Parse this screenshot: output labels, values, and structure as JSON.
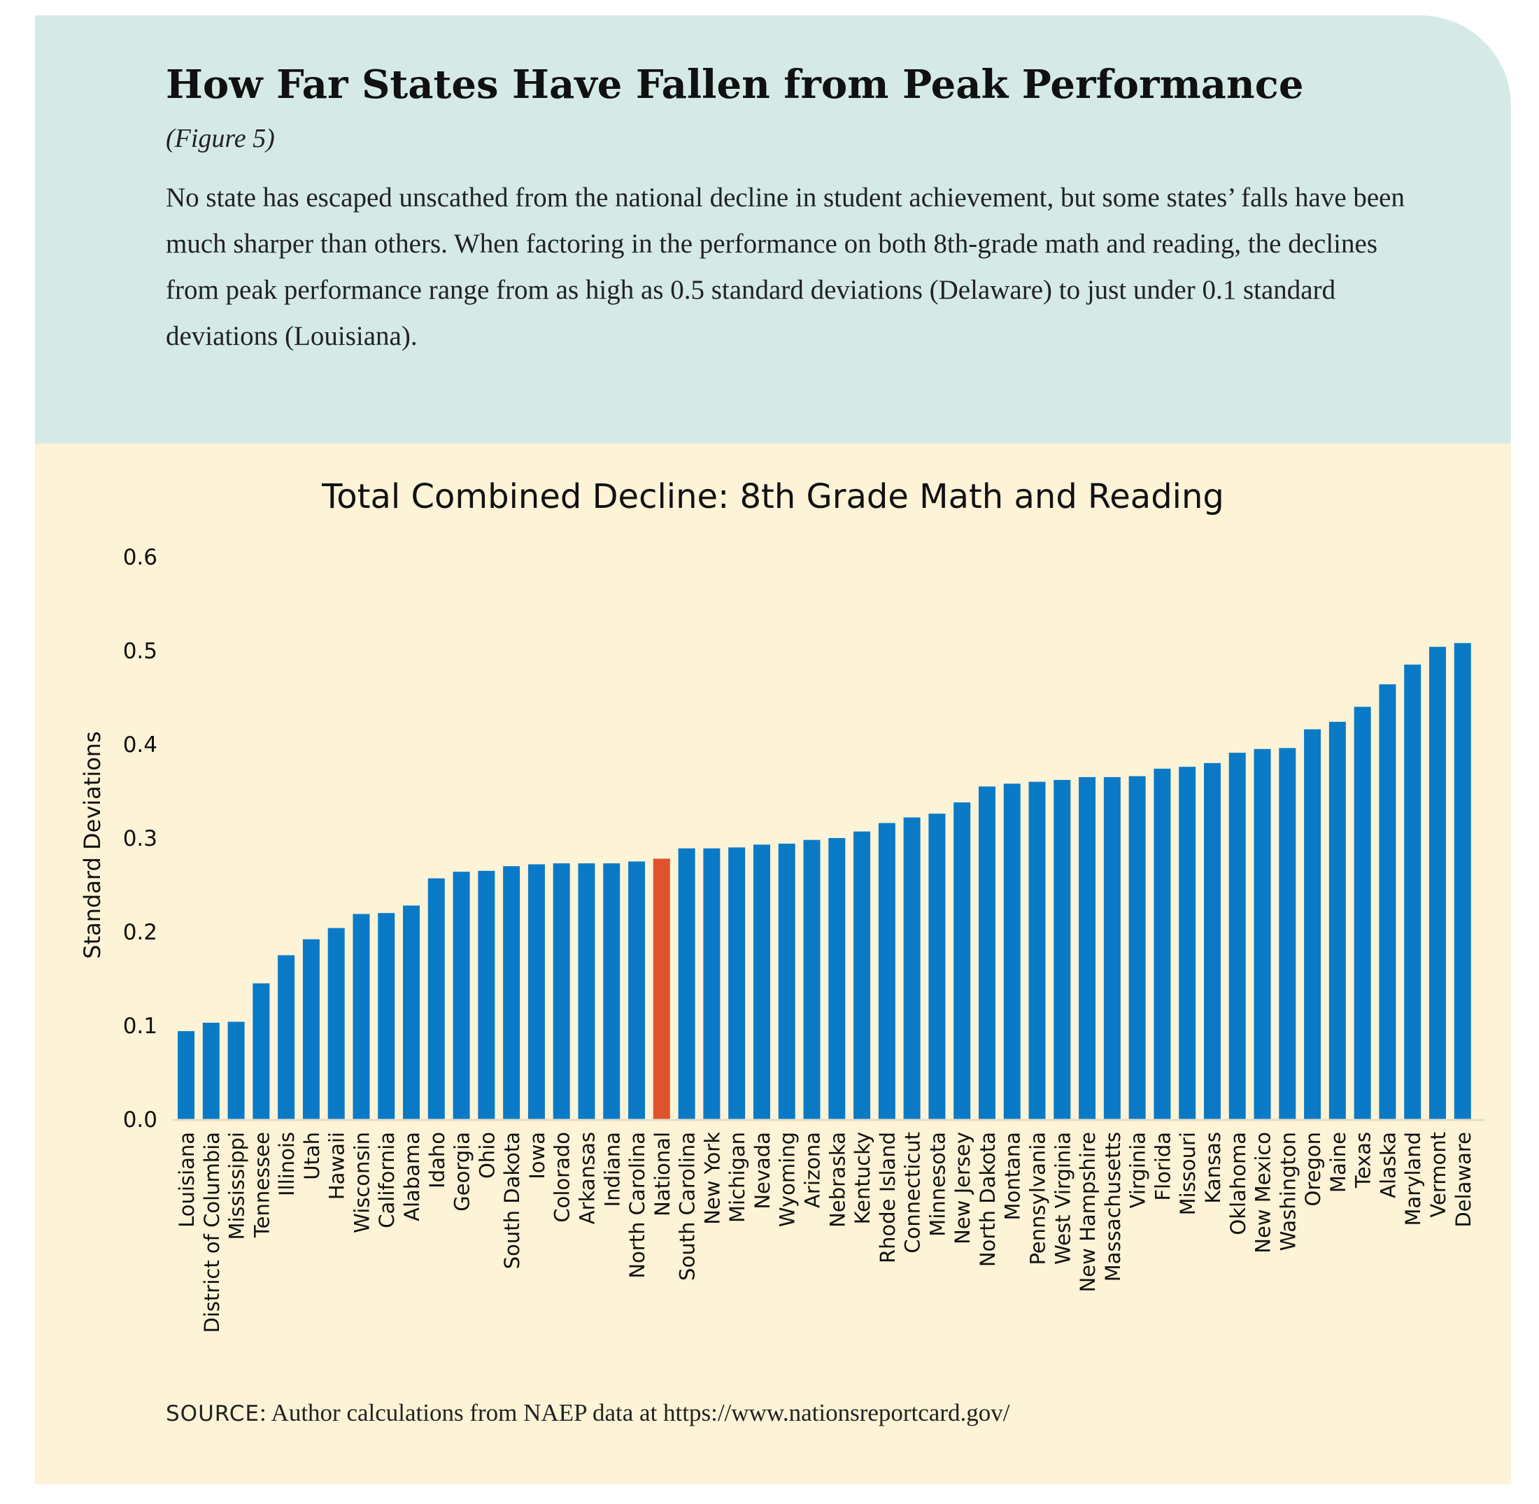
{
  "header": {
    "title": "How Far States Have Fallen from Peak Performance",
    "figure_label": "(Figure 5)",
    "description": "No state has escaped unscathed from the national decline in student achievement, but some states’ falls have been much sharper than others. When factoring in the performance on both 8th-grade math and reading, the declines from peak performance range from as high as 0.5 standard deviations (Delaware) to just under 0.1 standard deviations (Louisiana)."
  },
  "chart_data": {
    "type": "bar",
    "title": "Total Combined Decline: 8th Grade Math and Reading",
    "xlabel": "",
    "ylabel": "Standard Deviations",
    "ylim": [
      0,
      0.6
    ],
    "yticks": [
      "0.0",
      "0.1",
      "0.2",
      "0.3",
      "0.4",
      "0.5",
      "0.6"
    ],
    "grid": false,
    "categories": [
      "Louisiana",
      "District of Columbia",
      "Mississippi",
      "Tennessee",
      "Illinois",
      "Utah",
      "Hawaii",
      "Wisconsin",
      "California",
      "Alabama",
      "Idaho",
      "Georgia",
      "Ohio",
      "South Dakota",
      "Iowa",
      "Colorado",
      "Arkansas",
      "Indiana",
      "North Carolina",
      "National",
      "South Carolina",
      "New York",
      "Michigan",
      "Nevada",
      "Wyoming",
      "Arizona",
      "Nebraska",
      "Kentucky",
      "Rhode Island",
      "Connecticut",
      "Minnesota",
      "New Jersey",
      "North Dakota",
      "Montana",
      "Pennsylvania",
      "West Virginia",
      "New Hampshire",
      "Massachusetts",
      "Virginia",
      "Florida",
      "Missouri",
      "Kansas",
      "Oklahoma",
      "New Mexico",
      "Washington",
      "Oregon",
      "Maine",
      "Texas",
      "Alaska",
      "Maryland",
      "Vermont",
      "Delaware"
    ],
    "values": [
      0.094,
      0.103,
      0.104,
      0.145,
      0.175,
      0.192,
      0.204,
      0.219,
      0.22,
      0.228,
      0.257,
      0.264,
      0.265,
      0.27,
      0.272,
      0.273,
      0.273,
      0.273,
      0.275,
      0.278,
      0.289,
      0.289,
      0.29,
      0.293,
      0.294,
      0.298,
      0.3,
      0.307,
      0.316,
      0.322,
      0.326,
      0.338,
      0.355,
      0.358,
      0.36,
      0.362,
      0.365,
      0.365,
      0.366,
      0.374,
      0.376,
      0.38,
      0.391,
      0.395,
      0.396,
      0.416,
      0.424,
      0.44,
      0.464,
      0.485,
      0.504,
      0.508
    ],
    "highlight": "National",
    "colors": {
      "bar": "#0a7ac6",
      "highlight": "#e0522b",
      "header_bg": "#d5eae7",
      "chart_bg": "#fdf3d7"
    }
  },
  "source": {
    "label": "SOURCE",
    "text": ": Author calculations from NAEP data at https://www.nationsreportcard.gov/"
  }
}
